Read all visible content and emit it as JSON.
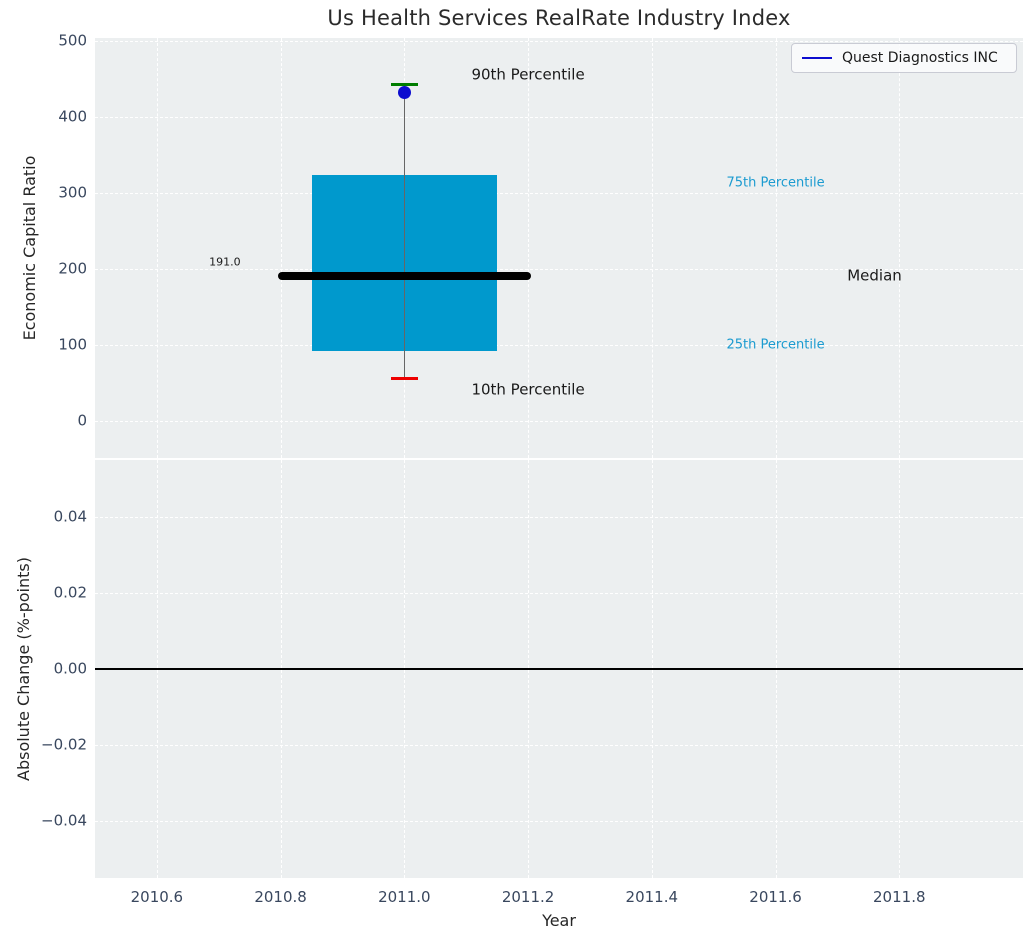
{
  "title": "Us Health Services RealRate Industry Index",
  "legend": {
    "label": "Quest Diagnostics INC"
  },
  "colors": {
    "figure_bg": "#ffffff",
    "plot_bg": "#eceff0",
    "grid": "#ffffff",
    "box_fill": "#0099cd",
    "median_line": "#000000",
    "whisker": "#666666",
    "cap_90th": "#007d00",
    "cap_10th": "#ee0000",
    "company_dot": "#0d0dcf",
    "legend_line": "#0d0dcf",
    "tick_label": "#39475e",
    "axis_label": "#262626",
    "percentile_text": "#1b9bd0",
    "annotation_text": "#1a1a1a",
    "zero_line": "#000000"
  },
  "chart_data": {
    "type": "boxplot",
    "title": "Us Health Services RealRate Industry Index",
    "top": {
      "ylabel": "Economic Capital Ratio",
      "xlim": [
        2010.5,
        2012.0
      ],
      "ylim": [
        -48,
        504
      ],
      "yticks": [
        {
          "v": 0,
          "label": "0"
        },
        {
          "v": 100,
          "label": "100"
        },
        {
          "v": 200,
          "label": "200"
        },
        {
          "v": 300,
          "label": "300"
        },
        {
          "v": 400,
          "label": "400"
        },
        {
          "v": 500,
          "label": "500"
        }
      ],
      "box": {
        "x": 2011.0,
        "box_width": 0.3,
        "median_line_width": 0.41,
        "cap_width": 0.044,
        "median": 191.0,
        "q1": 92,
        "q3": 324,
        "p10": 56,
        "p90": 443
      },
      "company_point": {
        "name": "Quest Diagnostics INC",
        "x": 2011.0,
        "y": 433
      },
      "annotations": [
        {
          "id": "p90-label",
          "text": "90th Percentile",
          "x": 2011.2,
          "y": 455,
          "color": "#1a1a1a",
          "size": 15
        },
        {
          "id": "p10-label",
          "text": "10th Percentile",
          "x": 2011.2,
          "y": 42,
          "color": "#1a1a1a",
          "size": 15
        },
        {
          "id": "p75-label",
          "text": "75th Percentile",
          "x": 2011.6,
          "y": 314,
          "color": "#1b9bd0",
          "size": 13
        },
        {
          "id": "p25-label",
          "text": "25th Percentile",
          "x": 2011.6,
          "y": 100,
          "color": "#1b9bd0",
          "size": 13
        },
        {
          "id": "median-label",
          "text": "Median",
          "x": 2011.76,
          "y": 191,
          "color": "#1a1a1a",
          "size": 15
        },
        {
          "id": "median-value",
          "text": "191.0",
          "x": 2010.71,
          "y": 210,
          "color": "#1a1a1a",
          "size": 11
        }
      ]
    },
    "bottom": {
      "ylabel": "Absolute Change (%-points)",
      "xlabel": "Year",
      "ylim": [
        -0.055,
        0.055
      ],
      "zero_line": 0.0,
      "yticks": [
        {
          "v": 0.04,
          "label": "0.04"
        },
        {
          "v": 0.02,
          "label": "0.02"
        },
        {
          "v": 0.0,
          "label": "0.00"
        },
        {
          "v": -0.02,
          "label": "−0.02"
        },
        {
          "v": -0.04,
          "label": "−0.04"
        }
      ],
      "xticks": [
        {
          "v": 2010.6,
          "label": "2010.6"
        },
        {
          "v": 2010.8,
          "label": "2010.8"
        },
        {
          "v": 2011.0,
          "label": "2011.0"
        },
        {
          "v": 2011.2,
          "label": "2011.2"
        },
        {
          "v": 2011.4,
          "label": "2011.4"
        },
        {
          "v": 2011.6,
          "label": "2011.6"
        },
        {
          "v": 2011.8,
          "label": "2011.8"
        }
      ]
    }
  }
}
